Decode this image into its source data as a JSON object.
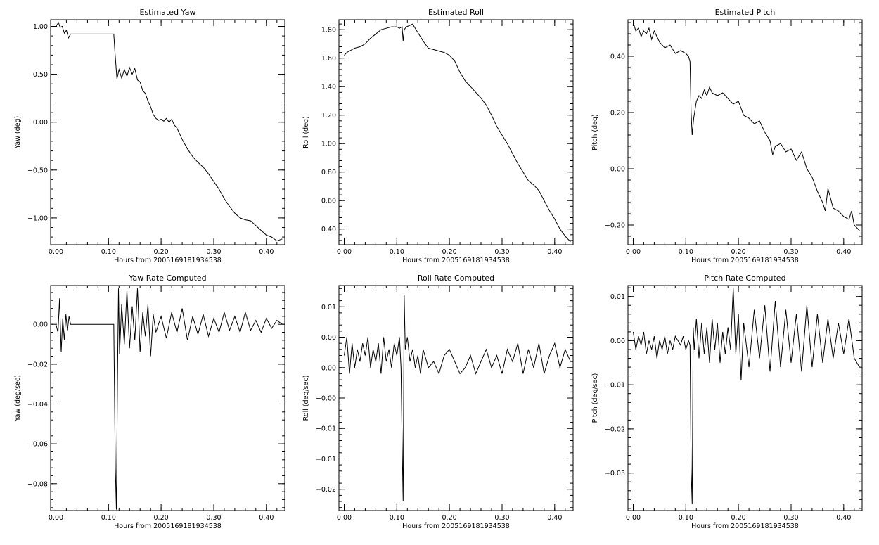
{
  "chart_data": [
    {
      "type": "line",
      "title": "Estimated Yaw",
      "xlabel": "Hours from 2005169181934538",
      "ylabel": "Yaw (deg)",
      "xlim": [
        -0.01,
        0.435
      ],
      "ylim": [
        -1.28,
        1.07
      ],
      "xticks": [
        0.0,
        0.1,
        0.2,
        0.3,
        0.4
      ],
      "xtick_labels": [
        "0.00",
        "0.10",
        "0.20",
        "0.30",
        "0.40"
      ],
      "yticks": [
        1.0,
        0.5,
        0.0,
        -0.5,
        -1.0
      ],
      "ytick_labels": [
        "1.00",
        "0.50",
        "0.00",
        "−0.50",
        "−1.00"
      ],
      "grid": false,
      "series": [
        {
          "x": [
            0.0,
            0.005,
            0.008,
            0.012,
            0.016,
            0.02,
            0.024,
            0.028,
            0.03,
            0.11,
            0.112,
            0.114,
            0.116,
            0.12,
            0.125,
            0.13,
            0.135,
            0.14,
            0.145,
            0.15,
            0.155,
            0.16,
            0.165,
            0.17,
            0.175,
            0.18,
            0.185,
            0.19,
            0.195,
            0.2,
            0.205,
            0.21,
            0.215,
            0.22,
            0.225,
            0.23,
            0.235,
            0.24,
            0.245,
            0.25,
            0.26,
            0.27,
            0.28,
            0.29,
            0.3,
            0.31,
            0.32,
            0.33,
            0.34,
            0.35,
            0.36,
            0.37,
            0.38,
            0.39,
            0.4,
            0.41,
            0.42,
            0.43
          ],
          "y": [
            1.0,
            1.04,
            0.99,
            1.0,
            0.93,
            0.96,
            0.88,
            0.92,
            0.92,
            0.92,
            0.75,
            0.6,
            0.45,
            0.55,
            0.46,
            0.55,
            0.48,
            0.57,
            0.5,
            0.56,
            0.44,
            0.42,
            0.33,
            0.3,
            0.22,
            0.16,
            0.08,
            0.04,
            0.02,
            0.03,
            0.01,
            0.04,
            0.0,
            0.03,
            -0.03,
            -0.06,
            -0.12,
            -0.18,
            -0.23,
            -0.28,
            -0.36,
            -0.42,
            -0.47,
            -0.54,
            -0.62,
            -0.7,
            -0.8,
            -0.88,
            -0.95,
            -1.0,
            -1.02,
            -1.03,
            -1.08,
            -1.13,
            -1.18,
            -1.2,
            -1.24,
            -1.22
          ]
        }
      ]
    },
    {
      "type": "line",
      "title": "Estimated Roll",
      "xlabel": "Hours from 2005169181934538",
      "ylabel": "Roll (deg)",
      "xlim": [
        -0.01,
        0.435
      ],
      "ylim": [
        0.29,
        1.87
      ],
      "xticks": [
        0.0,
        0.1,
        0.2,
        0.3,
        0.4
      ],
      "xtick_labels": [
        "0.00",
        "0.10",
        "0.20",
        "0.30",
        "0.40"
      ],
      "yticks": [
        1.8,
        1.6,
        1.4,
        1.2,
        1.0,
        0.8,
        0.6,
        0.4
      ],
      "ytick_labels": [
        "1.80",
        "1.60",
        "1.40",
        "1.20",
        "1.00",
        "0.80",
        "0.60",
        "0.40"
      ],
      "grid": false,
      "series": [
        {
          "x": [
            0.0,
            0.005,
            0.01,
            0.015,
            0.02,
            0.03,
            0.04,
            0.05,
            0.06,
            0.07,
            0.08,
            0.09,
            0.1,
            0.105,
            0.11,
            0.112,
            0.114,
            0.118,
            0.125,
            0.13,
            0.135,
            0.14,
            0.15,
            0.16,
            0.17,
            0.18,
            0.19,
            0.2,
            0.21,
            0.22,
            0.23,
            0.24,
            0.25,
            0.26,
            0.27,
            0.28,
            0.29,
            0.3,
            0.31,
            0.32,
            0.33,
            0.34,
            0.35,
            0.36,
            0.37,
            0.38,
            0.39,
            0.4,
            0.41,
            0.42,
            0.43
          ],
          "y": [
            1.62,
            1.64,
            1.65,
            1.66,
            1.67,
            1.68,
            1.7,
            1.74,
            1.77,
            1.8,
            1.81,
            1.82,
            1.82,
            1.81,
            1.82,
            1.72,
            1.8,
            1.82,
            1.83,
            1.84,
            1.81,
            1.78,
            1.72,
            1.67,
            1.66,
            1.65,
            1.64,
            1.62,
            1.58,
            1.5,
            1.44,
            1.4,
            1.36,
            1.32,
            1.27,
            1.2,
            1.12,
            1.06,
            1.0,
            0.93,
            0.86,
            0.8,
            0.74,
            0.71,
            0.67,
            0.6,
            0.53,
            0.47,
            0.4,
            0.35,
            0.31
          ]
        }
      ]
    },
    {
      "type": "line",
      "title": "Estimated Pitch",
      "xlabel": "Hours from 2005169181934538",
      "ylabel": "Pitch (deg)",
      "xlim": [
        -0.01,
        0.435
      ],
      "ylim": [
        -0.27,
        0.53
      ],
      "xticks": [
        0.0,
        0.1,
        0.2,
        0.3,
        0.4
      ],
      "xtick_labels": [
        "0.00",
        "0.10",
        "0.20",
        "0.30",
        "0.40"
      ],
      "yticks": [
        0.4,
        0.2,
        0.0,
        -0.2
      ],
      "ytick_labels": [
        "0.40",
        "0.20",
        "0.00",
        "−0.20"
      ],
      "grid": false,
      "series": [
        {
          "x": [
            0.0,
            0.005,
            0.01,
            0.015,
            0.02,
            0.025,
            0.03,
            0.035,
            0.04,
            0.045,
            0.05,
            0.06,
            0.07,
            0.08,
            0.09,
            0.1,
            0.105,
            0.108,
            0.11,
            0.112,
            0.115,
            0.12,
            0.125,
            0.13,
            0.135,
            0.14,
            0.145,
            0.15,
            0.16,
            0.17,
            0.18,
            0.19,
            0.2,
            0.21,
            0.22,
            0.23,
            0.24,
            0.25,
            0.26,
            0.265,
            0.27,
            0.28,
            0.29,
            0.3,
            0.31,
            0.32,
            0.33,
            0.34,
            0.35,
            0.36,
            0.365,
            0.37,
            0.38,
            0.39,
            0.4,
            0.41,
            0.415,
            0.42,
            0.43
          ],
          "y": [
            0.52,
            0.49,
            0.5,
            0.47,
            0.49,
            0.48,
            0.5,
            0.46,
            0.49,
            0.47,
            0.45,
            0.43,
            0.44,
            0.41,
            0.42,
            0.41,
            0.4,
            0.38,
            0.2,
            0.12,
            0.18,
            0.24,
            0.26,
            0.25,
            0.28,
            0.26,
            0.29,
            0.27,
            0.26,
            0.27,
            0.25,
            0.23,
            0.24,
            0.19,
            0.18,
            0.16,
            0.17,
            0.13,
            0.1,
            0.05,
            0.08,
            0.09,
            0.06,
            0.07,
            0.03,
            0.06,
            0.0,
            -0.03,
            -0.08,
            -0.12,
            -0.15,
            -0.07,
            -0.14,
            -0.15,
            -0.17,
            -0.18,
            -0.15,
            -0.2,
            -0.22
          ]
        }
      ]
    },
    {
      "type": "line",
      "title": "Yaw Rate Computed",
      "xlabel": "Hours from 2005169181934538",
      "ylabel": "Yaw (deg/sec)",
      "xlim": [
        -0.01,
        0.435
      ],
      "ylim": [
        -0.0935,
        0.0195
      ],
      "xticks": [
        0.0,
        0.1,
        0.2,
        0.3,
        0.4
      ],
      "xtick_labels": [
        "0.00",
        "0.10",
        "0.20",
        "0.30",
        "0.40"
      ],
      "yticks": [
        0.0,
        -0.02,
        -0.04,
        -0.06,
        -0.08
      ],
      "ytick_labels": [
        "0.00",
        "−0.02",
        "−0.04",
        "−0.06",
        "−0.08"
      ],
      "grid": false,
      "series": [
        {
          "x": [
            0.0,
            0.004,
            0.007,
            0.01,
            0.013,
            0.016,
            0.019,
            0.022,
            0.025,
            0.028,
            0.03,
            0.11,
            0.113,
            0.115,
            0.117,
            0.119,
            0.121,
            0.125,
            0.13,
            0.135,
            0.14,
            0.145,
            0.15,
            0.155,
            0.16,
            0.165,
            0.17,
            0.175,
            0.18,
            0.185,
            0.19,
            0.2,
            0.21,
            0.22,
            0.23,
            0.24,
            0.25,
            0.26,
            0.27,
            0.28,
            0.29,
            0.3,
            0.31,
            0.32,
            0.33,
            0.34,
            0.35,
            0.36,
            0.37,
            0.38,
            0.39,
            0.4,
            0.41,
            0.42,
            0.43
          ],
          "y": [
            0.0,
            -0.004,
            0.013,
            -0.014,
            0.003,
            -0.008,
            0.005,
            -0.003,
            0.004,
            0.0,
            0.0,
            0.0,
            -0.072,
            -0.093,
            -0.03,
            0.018,
            -0.015,
            0.01,
            -0.01,
            0.017,
            -0.012,
            0.009,
            -0.008,
            0.018,
            -0.014,
            0.006,
            -0.006,
            0.01,
            -0.016,
            0.005,
            -0.004,
            0.004,
            -0.007,
            0.006,
            -0.004,
            0.008,
            -0.008,
            0.004,
            -0.005,
            0.005,
            -0.006,
            0.003,
            -0.004,
            0.006,
            -0.003,
            0.004,
            -0.004,
            0.006,
            -0.003,
            0.002,
            -0.004,
            0.003,
            -0.002,
            0.002,
            0.0
          ]
        }
      ]
    },
    {
      "type": "line",
      "title": "Roll Rate Computed",
      "xlabel": "Hours from 2005169181934538",
      "ylabel": "Roll (deg/sec)",
      "xlim": [
        -0.01,
        0.435
      ],
      "ylim": [
        -0.0235,
        0.0135
      ],
      "xticks": [
        0.0,
        0.1,
        0.2,
        0.3,
        0.4
      ],
      "xtick_labels": [
        "0.00",
        "0.10",
        "0.20",
        "0.30",
        "0.40"
      ],
      "yticks": [
        0.01,
        0.005,
        0.0,
        -0.005,
        -0.01,
        -0.015,
        -0.02
      ],
      "ytick_labels": [
        "0.01",
        "0.00",
        "0.00",
        "−0.00",
        "−0.01",
        "−0.01",
        "−0.02"
      ],
      "grid": false,
      "series": [
        {
          "x": [
            0.0,
            0.005,
            0.01,
            0.015,
            0.02,
            0.025,
            0.03,
            0.035,
            0.04,
            0.045,
            0.05,
            0.055,
            0.06,
            0.065,
            0.07,
            0.075,
            0.08,
            0.085,
            0.09,
            0.095,
            0.1,
            0.105,
            0.108,
            0.11,
            0.112,
            0.114,
            0.116,
            0.12,
            0.125,
            0.13,
            0.135,
            0.14,
            0.145,
            0.15,
            0.16,
            0.17,
            0.18,
            0.19,
            0.2,
            0.21,
            0.22,
            0.23,
            0.24,
            0.25,
            0.26,
            0.27,
            0.28,
            0.29,
            0.3,
            0.31,
            0.32,
            0.33,
            0.34,
            0.35,
            0.36,
            0.37,
            0.38,
            0.39,
            0.4,
            0.41,
            0.42,
            0.43
          ],
          "y": [
            0.002,
            0.005,
            -0.001,
            0.004,
            0.0,
            0.003,
            0.001,
            0.004,
            0.002,
            0.005,
            0.0,
            0.003,
            0.001,
            0.004,
            -0.001,
            0.005,
            0.001,
            0.003,
            0.0,
            0.004,
            0.002,
            0.005,
            0.0,
            -0.012,
            -0.022,
            0.012,
            0.003,
            0.005,
            0.001,
            0.003,
            0.0,
            0.002,
            -0.001,
            0.003,
            0.0,
            0.001,
            -0.001,
            0.002,
            0.003,
            0.001,
            -0.001,
            0.0,
            0.002,
            -0.001,
            0.001,
            0.003,
            0.0,
            0.002,
            -0.001,
            0.003,
            0.001,
            0.004,
            -0.001,
            0.003,
            0.0,
            0.004,
            -0.001,
            0.002,
            0.004,
            0.0,
            0.003,
            0.001
          ]
        }
      ]
    },
    {
      "type": "line",
      "title": "Pitch Rate Computed",
      "xlabel": "Hours from 2005169181934538",
      "ylabel": "Pitch (deg/sec)",
      "xlim": [
        -0.01,
        0.435
      ],
      "ylim": [
        -0.0385,
        0.0125
      ],
      "xticks": [
        0.0,
        0.1,
        0.2,
        0.3,
        0.4
      ],
      "xtick_labels": [
        "0.00",
        "0.10",
        "0.20",
        "0.30",
        "0.40"
      ],
      "yticks": [
        0.01,
        0.0,
        -0.01,
        -0.02,
        -0.03
      ],
      "ytick_labels": [
        "0.01",
        "0.00",
        "−0.01",
        "−0.02",
        "−0.03"
      ],
      "grid": false,
      "series": [
        {
          "x": [
            0.0,
            0.005,
            0.01,
            0.015,
            0.02,
            0.025,
            0.03,
            0.035,
            0.04,
            0.045,
            0.05,
            0.055,
            0.06,
            0.065,
            0.07,
            0.075,
            0.08,
            0.085,
            0.09,
            0.095,
            0.1,
            0.105,
            0.108,
            0.11,
            0.112,
            0.114,
            0.116,
            0.12,
            0.125,
            0.13,
            0.135,
            0.14,
            0.145,
            0.15,
            0.155,
            0.16,
            0.165,
            0.17,
            0.175,
            0.18,
            0.185,
            0.19,
            0.195,
            0.2,
            0.205,
            0.21,
            0.22,
            0.23,
            0.24,
            0.25,
            0.26,
            0.27,
            0.28,
            0.29,
            0.3,
            0.31,
            0.32,
            0.33,
            0.34,
            0.35,
            0.36,
            0.37,
            0.38,
            0.39,
            0.4,
            0.41,
            0.42,
            0.43
          ],
          "y": [
            0.002,
            -0.002,
            0.001,
            -0.001,
            0.002,
            -0.003,
            0.0,
            -0.002,
            0.001,
            -0.004,
            0.0,
            -0.002,
            0.001,
            -0.003,
            0.0,
            -0.002,
            0.001,
            0.0,
            -0.001,
            0.001,
            -0.002,
            0.0,
            -0.001,
            -0.029,
            -0.037,
            0.003,
            -0.002,
            0.005,
            -0.004,
            0.004,
            -0.003,
            0.003,
            -0.005,
            0.005,
            -0.002,
            0.004,
            -0.005,
            0.002,
            -0.003,
            0.003,
            -0.002,
            0.012,
            -0.003,
            0.006,
            -0.009,
            0.004,
            -0.006,
            0.007,
            -0.004,
            0.008,
            -0.007,
            0.009,
            -0.006,
            0.007,
            -0.005,
            0.006,
            -0.007,
            0.008,
            -0.006,
            0.006,
            -0.005,
            0.005,
            -0.004,
            0.004,
            -0.003,
            0.005,
            -0.004,
            -0.006
          ]
        }
      ]
    }
  ]
}
